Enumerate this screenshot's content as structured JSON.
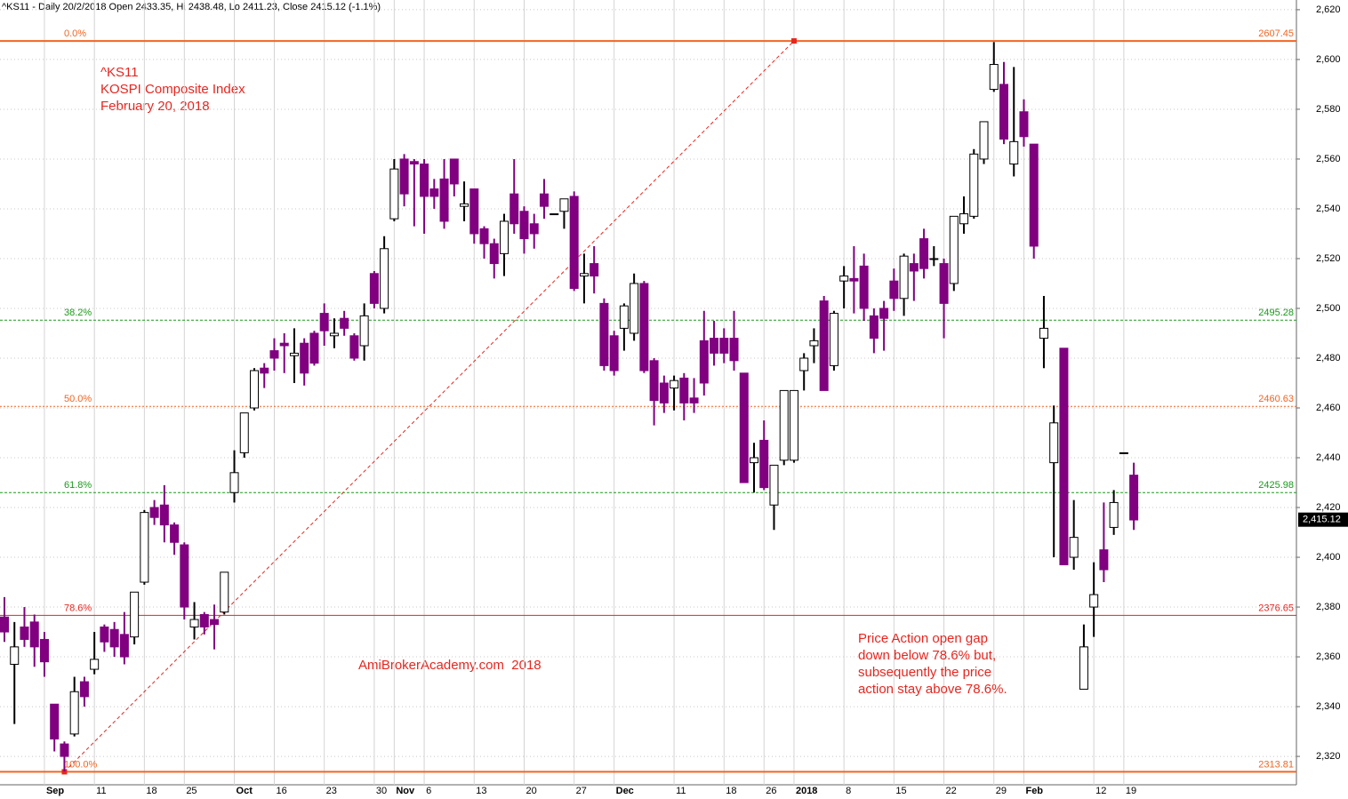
{
  "chart_data": {
    "type": "candlestick",
    "title": "^KS11 - Daily 20/2/2018 Open 2433.35, Hi 2438.48, Lo 2411.23, Close 2415.12 (-1.1%)",
    "categories": [
      null,
      null,
      null,
      null,
      "Sep",
      null,
      null,
      null,
      null,
      "11",
      null,
      null,
      null,
      null,
      "18",
      null,
      null,
      null,
      "25",
      null,
      null,
      null,
      null,
      "Oct",
      null,
      null,
      null,
      "16",
      null,
      null,
      null,
      null,
      "23",
      null,
      null,
      null,
      null,
      "30",
      null,
      "Nov",
      null,
      null,
      "6",
      null,
      null,
      null,
      null,
      "13",
      null,
      null,
      null,
      null,
      "20",
      null,
      null,
      null,
      null,
      "27",
      null,
      null,
      null,
      "Dec",
      null,
      null,
      null,
      null,
      null,
      "11",
      null,
      null,
      null,
      null,
      "18",
      null,
      null,
      null,
      "26",
      null,
      null,
      "2018",
      null,
      null,
      null,
      null,
      "8",
      null,
      null,
      null,
      null,
      "15",
      null,
      null,
      null,
      null,
      "22",
      null,
      null,
      null,
      null,
      "29",
      null,
      null,
      "Feb",
      null,
      null,
      null,
      null,
      null,
      null,
      "12",
      null,
      null,
      "19",
      null
    ],
    "open": [
      2376,
      2357,
      2372,
      2374,
      2367,
      2341,
      2325,
      2329,
      2350,
      2355,
      2372,
      2371,
      2369,
      2368,
      2390,
      2420,
      2421,
      2413,
      2405,
      2372,
      2377,
      2375,
      2378,
      2426,
      2442,
      2460,
      2476,
      2483,
      2486,
      2481,
      2486,
      2490,
      2498,
      2489,
      2496,
      2489,
      2485,
      2514,
      2500,
      2536,
      2560,
      2559,
      2558,
      2548,
      2552,
      2560,
      2541,
      2548,
      2532,
      2526,
      2522,
      2546,
      2539,
      2534,
      2546,
      2538,
      2539,
      2545,
      2513,
      2518,
      2502,
      2489,
      2492,
      2490,
      2510,
      2479,
      2470,
      2468,
      2472,
      2464,
      2487,
      2488,
      2488,
      2488,
      2474,
      2438,
      2447,
      2421,
      2439,
      2439,
      2475,
      2485,
      2503,
      2477,
      2511,
      2512,
      2517,
      2497,
      2500,
      2511,
      2504,
      2518,
      2528,
      2520,
      2518,
      2510,
      2534,
      2537,
      2560,
      2588,
      2590,
      2558,
      2579,
      2566,
      2488,
      2438,
      2484,
      2400,
      2347,
      2380,
      2403,
      2412,
      2442,
      2433
    ],
    "high": [
      2384,
      2374,
      2380,
      2377,
      2370,
      2341,
      2326,
      2352,
      2352,
      2370,
      2373,
      2374,
      2378,
      2386,
      2419,
      2423,
      2429,
      2414,
      2406,
      2382,
      2378,
      2381,
      2394,
      2443,
      2458,
      2476,
      2478,
      2488,
      2490,
      2492,
      2488,
      2491,
      2502,
      2496,
      2499,
      2490,
      2502,
      2515,
      2529,
      2560,
      2562,
      2560,
      2560,
      2552,
      2560,
      2560,
      2551,
      2548,
      2533,
      2528,
      2538,
      2560,
      2541,
      2538,
      2552,
      2538,
      2544,
      2547,
      2522,
      2525,
      2504,
      2491,
      2502,
      2514,
      2511,
      2480,
      2473,
      2473,
      2474,
      2472,
      2499,
      2495,
      2492,
      2499,
      2474,
      2446,
      2455,
      2437,
      2467,
      2467,
      2482,
      2492,
      2505,
      2499,
      2517,
      2525,
      2522,
      2500,
      2503,
      2516,
      2522,
      2522,
      2532,
      2525,
      2520,
      2537,
      2545,
      2564,
      2575,
      2607,
      2599,
      2597,
      2584,
      2566,
      2505,
      2461,
      2484,
      2423,
      2373,
      2398,
      2422,
      2427,
      2442,
      2438
    ],
    "low": [
      2366,
      2333,
      2364,
      2356,
      2352,
      2322,
      2314,
      2328,
      2340,
      2353,
      2362,
      2360,
      2357,
      2365,
      2389,
      2413,
      2406,
      2401,
      2375,
      2367,
      2369,
      2363,
      2377,
      2422,
      2440,
      2459,
      2468,
      2475,
      2474,
      2470,
      2469,
      2477,
      2485,
      2484,
      2489,
      2479,
      2479,
      2500,
      2498,
      2535,
      2541,
      2533,
      2530,
      2540,
      2532,
      2545,
      2535,
      2526,
      2520,
      2512,
      2513,
      2530,
      2522,
      2524,
      2536,
      2538,
      2532,
      2507,
      2502,
      2506,
      2475,
      2473,
      2483,
      2487,
      2474,
      2453,
      2458,
      2459,
      2455,
      2458,
      2465,
      2477,
      2478,
      2475,
      2430,
      2426,
      2427,
      2411,
      2437,
      2438,
      2467,
      2478,
      2467,
      2475,
      2500,
      2498,
      2495,
      2482,
      2483,
      2499,
      2497,
      2503,
      2512,
      2517,
      2488,
      2507,
      2530,
      2536,
      2558,
      2587,
      2566,
      2553,
      2565,
      2520,
      2476,
      2400,
      2397,
      2395,
      2347,
      2368,
      2390,
      2409,
      2442,
      2411
    ],
    "close": [
      2370,
      2364,
      2367,
      2364,
      2358,
      2327,
      2320,
      2346,
      2344,
      2359,
      2366,
      2364,
      2360,
      2386,
      2418,
      2416,
      2413,
      2406,
      2380,
      2375,
      2372,
      2373,
      2394,
      2434,
      2458,
      2475,
      2474,
      2480,
      2485,
      2482,
      2474,
      2478,
      2491,
      2490,
      2492,
      2480,
      2497,
      2502,
      2524,
      2556,
      2546,
      2558,
      2545,
      2545,
      2535,
      2550,
      2542,
      2530,
      2526,
      2518,
      2535,
      2534,
      2528,
      2530,
      2541,
      2538,
      2544,
      2508,
      2514,
      2513,
      2477,
      2475,
      2501,
      2510,
      2475,
      2463,
      2462,
      2471,
      2462,
      2462,
      2470,
      2482,
      2482,
      2479,
      2430,
      2440,
      2428,
      2437,
      2467,
      2467,
      2480,
      2487,
      2467,
      2498,
      2513,
      2511,
      2500,
      2488,
      2496,
      2504,
      2521,
      2515,
      2516,
      2520,
      2502,
      2537,
      2538,
      2562,
      2575,
      2598,
      2568,
      2567,
      2569,
      2525,
      2492,
      2454,
      2397,
      2408,
      2364,
      2385,
      2395,
      2422,
      2442,
      2415
    ],
    "up_color": "#ffffff",
    "down_color": "#800080",
    "ylim": [
      2308.6,
      2623.9
    ],
    "yticks": [
      {
        "value": 2320,
        "label": "2,320"
      },
      {
        "value": 2340,
        "label": "2,340"
      },
      {
        "value": 2360,
        "label": "2,360"
      },
      {
        "value": 2380,
        "label": "2,380"
      },
      {
        "value": 2400,
        "label": "2,400"
      },
      {
        "value": 2420,
        "label": "2,420"
      },
      {
        "value": 2440,
        "label": "2,440"
      },
      {
        "value": 2460,
        "label": "2,460"
      },
      {
        "value": 2480,
        "label": "2,480"
      },
      {
        "value": 2500,
        "label": "2,500"
      },
      {
        "value": 2520,
        "label": "2,520"
      },
      {
        "value": 2540,
        "label": "2,540"
      },
      {
        "value": 2560,
        "label": "2,560"
      },
      {
        "value": 2580,
        "label": "2,580"
      },
      {
        "value": 2600,
        "label": "2,600"
      },
      {
        "value": 2620,
        "label": "2,620"
      }
    ],
    "last_price": {
      "value": 2415.12,
      "label": "2,415.12"
    },
    "grid": true,
    "fib_levels": [
      {
        "label": "0.0%",
        "value": 2607.45,
        "color": "#f26522",
        "style": "solid"
      },
      {
        "label": "38.2%",
        "value": 2495.28,
        "color": "#1a9a1a",
        "style": "dashed"
      },
      {
        "label": "50.0%",
        "value": 2460.63,
        "color": "#f26522",
        "style": "dotted"
      },
      {
        "label": "61.8%",
        "value": 2425.98,
        "color": "#1a9a1a",
        "style": "dashed"
      },
      {
        "label": "78.6%",
        "value": 2376.65,
        "color": "#e8251e",
        "style": "solid"
      },
      {
        "label": "100.0%",
        "value": 2313.81,
        "color": "#f26522",
        "style": "solid"
      }
    ],
    "symbol": "^KS11",
    "name": "KOSPI Composite Index",
    "date": "February 20, 2018",
    "watermark": "AmiBrokerAcademy.com  2018",
    "note": [
      "Price Action open gap",
      "down below 78.6% but,",
      "subsequently the price",
      "action stay above 78.6%."
    ]
  }
}
